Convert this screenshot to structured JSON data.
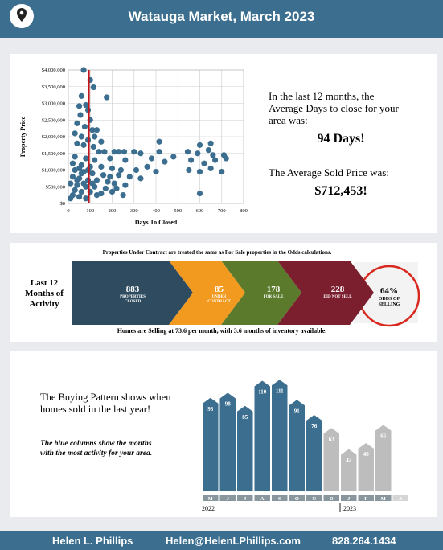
{
  "header": {
    "title": "Watauga Market, March 2023"
  },
  "chart_data": [
    {
      "type": "scatter",
      "x_label": "Days To Closed",
      "y_label": "Property Price",
      "color": "#3b6e8f",
      "vline": 94,
      "vline_color": "#c0141c",
      "xlim": [
        0,
        800
      ],
      "xticks": [
        0,
        100,
        200,
        300,
        400,
        500,
        600,
        700,
        800
      ],
      "ylim": [
        0,
        4000000
      ],
      "yticks": [
        {
          "value": 0,
          "label": "$0"
        },
        {
          "value": 500000,
          "label": "$500,000"
        },
        {
          "value": 1000000,
          "label": "$1,000,000"
        },
        {
          "value": 1500000,
          "label": "$1,500,000"
        },
        {
          "value": 2000000,
          "label": "$2,000,000"
        },
        {
          "value": 2500000,
          "label": "$2,500,000"
        },
        {
          "value": 3000000,
          "label": "$3,000,000"
        },
        {
          "value": 3500000,
          "label": "$3,500,000"
        },
        {
          "value": 4000000,
          "label": "$4,000,000"
        }
      ],
      "grid": true,
      "x": [
        70,
        100,
        115,
        175,
        60,
        80,
        50,
        90,
        55,
        100,
        40,
        75,
        110,
        130,
        30,
        60,
        120,
        90,
        150,
        40,
        70,
        115,
        140,
        165,
        210,
        230,
        255,
        300,
        330,
        415,
        545,
        590,
        640,
        660,
        710,
        415,
        600,
        650,
        480,
        30,
        80,
        120,
        190,
        260,
        380,
        440,
        560,
        620,
        670,
        720,
        20,
        60,
        100,
        150,
        200,
        240,
        310,
        360,
        400,
        550,
        600,
        650,
        700,
        30,
        70,
        110,
        160,
        190,
        230,
        280,
        330,
        20,
        50,
        90,
        130,
        180,
        210,
        260,
        10,
        40,
        80,
        120,
        170,
        220,
        30,
        60,
        100,
        150,
        200,
        20,
        50,
        80,
        130,
        10,
        600,
        250,
        40,
        60,
        90,
        110,
        70,
        50
      ],
      "values": [
        4000000,
        3700000,
        3480000,
        3180000,
        3220000,
        2950000,
        2920000,
        2800000,
        2650000,
        2500000,
        2400000,
        2300000,
        2200000,
        2200000,
        2100000,
        2000000,
        2000000,
        1900000,
        1850000,
        1800000,
        1750000,
        1700000,
        1550000,
        1550000,
        1550000,
        1550000,
        1550000,
        1550000,
        1500000,
        1550000,
        1550000,
        1500000,
        1600000,
        1450000,
        1450000,
        1850000,
        1750000,
        1800000,
        1400000,
        1400000,
        1350000,
        1300000,
        1350000,
        1300000,
        1350000,
        1250000,
        1300000,
        1200000,
        1300000,
        1350000,
        1200000,
        1150000,
        1100000,
        1100000,
        1050000,
        1000000,
        1000000,
        1100000,
        950000,
        1000000,
        950000,
        1050000,
        950000,
        1000000,
        950000,
        900000,
        850000,
        800000,
        850000,
        800000,
        750000,
        800000,
        750000,
        700000,
        700000,
        650000,
        600000,
        550000,
        600000,
        550000,
        500000,
        500000,
        450000,
        450000,
        400000,
        350000,
        350000,
        300000,
        350000,
        250000,
        200000,
        150000,
        250000,
        150000,
        300000,
        250000,
        700000,
        900000,
        1000000,
        600000,
        600000,
        1050000
      ]
    },
    {
      "type": "bar",
      "categories": [
        "M",
        "J",
        "J",
        "A",
        "S",
        "O",
        "N",
        "D",
        "J",
        "F",
        "M",
        "A"
      ],
      "values": [
        93,
        98,
        85,
        110,
        111,
        91,
        76,
        63,
        42,
        48,
        66,
        null
      ],
      "colors": [
        "#3b6e8f",
        "#3b6e8f",
        "#3b6e8f",
        "#3b6e8f",
        "#3b6e8f",
        "#3b6e8f",
        "#3b6e8f",
        "#bdbdbd",
        "#bdbdbd",
        "#bdbdbd",
        "#bdbdbd",
        "#bdbdbd"
      ],
      "years": [
        "2022",
        "2023"
      ]
    }
  ],
  "summary": {
    "days_text": "In the last 12 months, the Average Days to close for your area was:",
    "days_value": "94 Days!",
    "price_text": "The Average Sold Price was:",
    "price_value": "$712,453!"
  },
  "activity": {
    "note": "Properties Under Contract are treated the same as For Sale properties in the Odds calculations.",
    "label": "Last 12 Months of Activity",
    "items": [
      {
        "value": 883,
        "label": "PROPERTIES CLOSED",
        "color": "#2e4b5f"
      },
      {
        "value": 85,
        "label": "UNDER CONTRACT",
        "color": "#f29a1f"
      },
      {
        "value": 178,
        "label": "FOR SALE",
        "color": "#5b7a2b"
      },
      {
        "value": 228,
        "label": "DID NOT SELL",
        "color": "#7b1f2f"
      }
    ],
    "odds": {
      "value": "64%",
      "label": "ODDS OF SELLING"
    },
    "footer": "Homes are Selling at 73.6 per month, with 3.6 months of inventory available."
  },
  "pattern": {
    "text": "The Buying Pattern shows when homes sold in the last year!",
    "note": "The blue columns show the months with the most activity for your area."
  },
  "footer": {
    "name": "Helen L. Phillips",
    "email": "Helen@HelenLPhillips.com",
    "phone": "828.264.1434"
  }
}
